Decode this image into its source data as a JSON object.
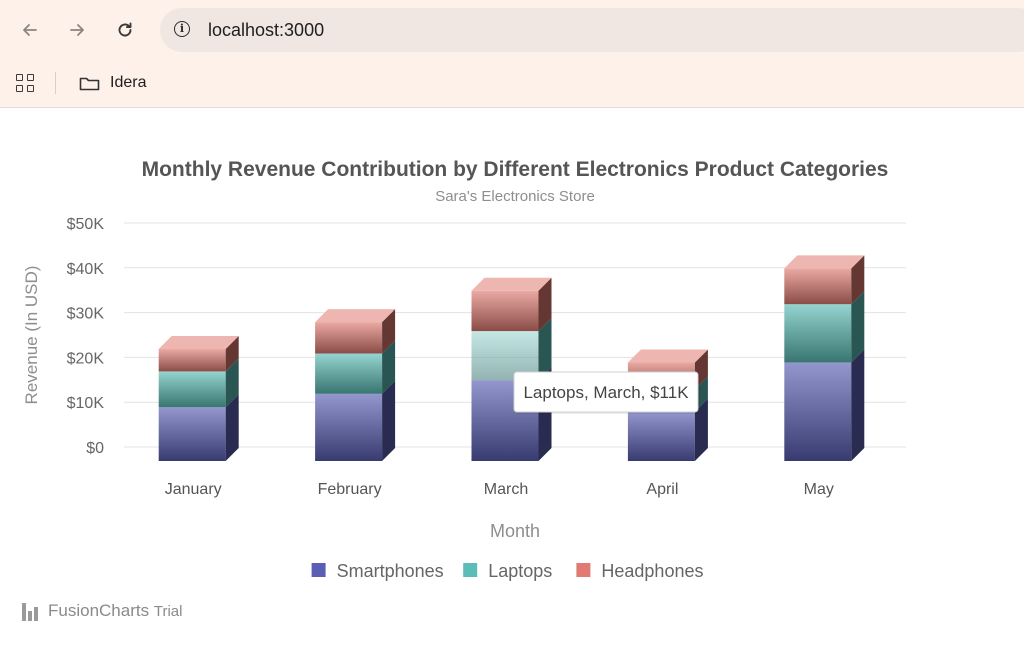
{
  "browser": {
    "url": "localhost:3000",
    "bookmark_label": "Idera",
    "icons": [
      "back-arrow-icon",
      "forward-arrow-icon",
      "reload-icon",
      "info-icon",
      "apps-grid-icon",
      "folder-icon"
    ]
  },
  "chart_data": {
    "type": "bar",
    "stacked": true,
    "style": "3d-column",
    "title": "Monthly Revenue Contribution by Different Electronics Product Categories",
    "subtitle": "Sara's Electronics Store",
    "xlabel": "Month",
    "ylabel": "Revenue (In USD)",
    "categories": [
      "January",
      "February",
      "March",
      "April",
      "May"
    ],
    "series": [
      {
        "name": "Smartphones",
        "color": "#5b5fb4",
        "values": [
          12000,
          15000,
          18000,
          11000,
          22000
        ]
      },
      {
        "name": "Laptops",
        "color": "#5cbdb6",
        "values": [
          8000,
          9000,
          11000,
          5000,
          13000
        ]
      },
      {
        "name": "Headphones",
        "color": "#e07a72",
        "values": [
          5000,
          7000,
          9000,
          6000,
          8000
        ]
      }
    ],
    "ylim": [
      0,
      50000
    ],
    "yticks": [
      0,
      10000,
      20000,
      30000,
      40000,
      50000
    ],
    "ytick_labels": [
      "$0",
      "$10K",
      "$20K",
      "$30K",
      "$40K",
      "$50K"
    ],
    "grid": true,
    "legend_position": "bottom-center",
    "tooltip": {
      "text": "Laptops, March, $11K",
      "series_index": 1,
      "category_index": 2
    }
  },
  "footer": {
    "brand": "FusionCharts",
    "suffix": "Trial"
  }
}
